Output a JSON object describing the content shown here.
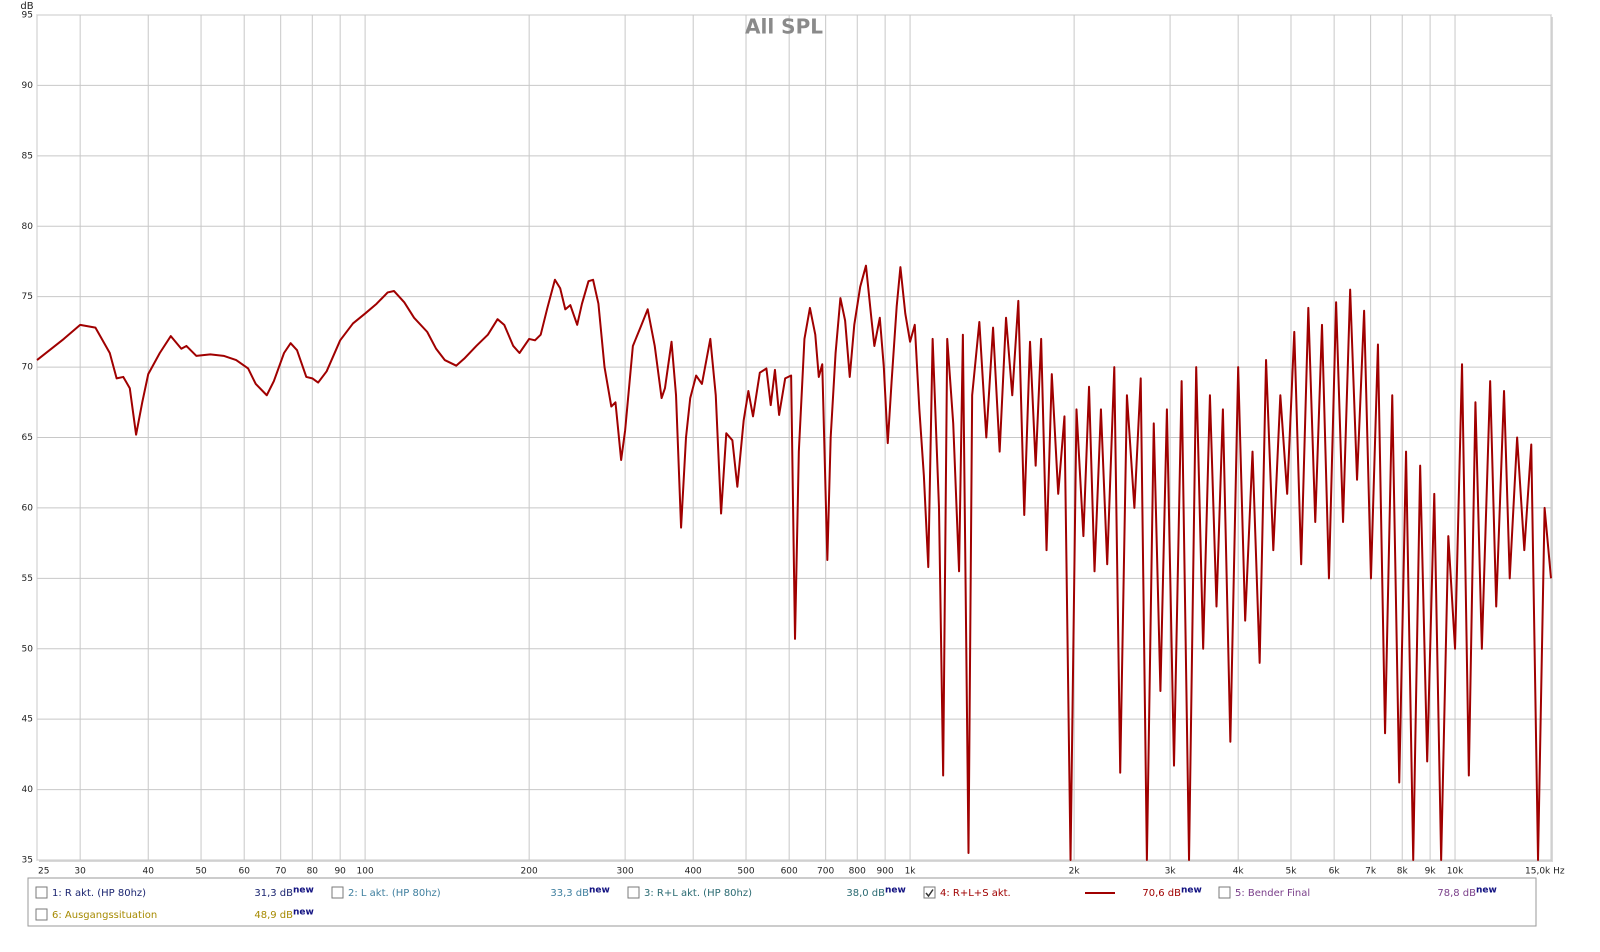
{
  "chart_data": {
    "type": "line",
    "title": "All SPL",
    "y_label": "dB",
    "xscale": "log",
    "grid": true,
    "xlim": [
      25,
      15000
    ],
    "ylim": [
      35,
      95
    ],
    "yticks": [
      35,
      40,
      45,
      50,
      55,
      60,
      65,
      70,
      75,
      80,
      85,
      90,
      95
    ],
    "xticks": [
      25,
      30,
      40,
      50,
      60,
      70,
      80,
      90,
      100,
      200,
      300,
      400,
      500,
      600,
      700,
      800,
      900,
      {
        "value": 1000,
        "label": "1k"
      },
      {
        "value": 2000,
        "label": "2k"
      },
      {
        "value": 3000,
        "label": "3k"
      },
      {
        "value": 4000,
        "label": "4k"
      },
      {
        "value": 5000,
        "label": "5k"
      },
      {
        "value": 6000,
        "label": "6k"
      },
      {
        "value": 7000,
        "label": "7k"
      },
      {
        "value": 8000,
        "label": "8k"
      },
      {
        "value": 9000,
        "label": "9k"
      },
      {
        "value": 10000,
        "label": "10k"
      },
      {
        "value": 15000,
        "label": "15,0k Hz"
      }
    ],
    "x": [
      25,
      28,
      30,
      32,
      34,
      35,
      36,
      37,
      38,
      39,
      40,
      42,
      44,
      46,
      47,
      49,
      52,
      55,
      58,
      61,
      63,
      66,
      68,
      71,
      73,
      75,
      78,
      80,
      82,
      85,
      90,
      95,
      100,
      105,
      110,
      113,
      118,
      123,
      130,
      135,
      140,
      147,
      152,
      160,
      168,
      175,
      180,
      187,
      192,
      200,
      205,
      210,
      216,
      223,
      228,
      233,
      238,
      245,
      250,
      257,
      262,
      268,
      275,
      283,
      288,
      295,
      300,
      310,
      320,
      330,
      340,
      350,
      355,
      365,
      372,
      380,
      388,
      395,
      405,
      415,
      430,
      440,
      450,
      460,
      472,
      482,
      495,
      505,
      515,
      530,
      545,
      555,
      565,
      575,
      590,
      605,
      615,
      625,
      640,
      655,
      670,
      680,
      690,
      705,
      715,
      730,
      745,
      760,
      775,
      790,
      810,
      830,
      850,
      860,
      880,
      895,
      910,
      925,
      945,
      960,
      980,
      1000,
      1020,
      1040,
      1060,
      1080,
      1100,
      1130,
      1150,
      1170,
      1200,
      1230,
      1250,
      1280,
      1300,
      1340,
      1380,
      1420,
      1460,
      1500,
      1540,
      1580,
      1620,
      1660,
      1700,
      1740,
      1780,
      1820,
      1870,
      1920,
      1970,
      2020,
      2080,
      2130,
      2180,
      2240,
      2300,
      2370,
      2430,
      2500,
      2580,
      2650,
      2720,
      2800,
      2880,
      2960,
      3050,
      3150,
      3250,
      3350,
      3450,
      3550,
      3650,
      3750,
      3870,
      4000,
      4120,
      4250,
      4380,
      4500,
      4640,
      4780,
      4920,
      5070,
      5220,
      5380,
      5540,
      5700,
      5870,
      6050,
      6230,
      6420,
      6610,
      6810,
      7010,
      7220,
      7440,
      7670,
      7900,
      8130,
      8380,
      8630,
      8890,
      9160,
      9430,
      9720,
      10000,
      10300,
      10600,
      10900,
      11200,
      11600,
      11900,
      12300,
      12600,
      13000,
      13400,
      13800,
      14200,
      14600,
      15000
    ],
    "series": [
      {
        "name": "4: R+L+S akt.",
        "color": "#a00000",
        "level": "70,6 dB",
        "tag": "new",
        "checked": true,
        "values": [
          70.5,
          72,
          73,
          72.8,
          71,
          69.2,
          69.3,
          68.5,
          65.2,
          67.5,
          69.5,
          71,
          72.2,
          71.3,
          71.5,
          70.8,
          70.9,
          70.8,
          70.5,
          69.9,
          68.8,
          68,
          69,
          71,
          71.7,
          71.2,
          69.3,
          69.2,
          68.9,
          69.7,
          71.9,
          73.1,
          73.8,
          74.5,
          75.3,
          75.4,
          74.6,
          73.5,
          72.5,
          71.3,
          70.5,
          70.1,
          70.6,
          71.5,
          72.3,
          73.4,
          73,
          71.5,
          71,
          72,
          71.9,
          72.3,
          74.2,
          76.2,
          75.6,
          74.1,
          74.4,
          73,
          74.5,
          76.1,
          76.2,
          74.5,
          70,
          67.2,
          67.5,
          63.4,
          65.5,
          71.5,
          72.8,
          74.1,
          71.5,
          67.8,
          68.5,
          71.8,
          68,
          58.6,
          65,
          67.8,
          69.4,
          68.8,
          72,
          68,
          59.6,
          65.3,
          64.8,
          61.5,
          66.2,
          68.3,
          66.5,
          69.6,
          69.9,
          67.3,
          69.8,
          66.6,
          69.2,
          69.4,
          50.7,
          64,
          72,
          74.2,
          72.3,
          69.3,
          70.2,
          56.3,
          65,
          71,
          74.9,
          73.3,
          69.3,
          73,
          75.7,
          77.2,
          73.3,
          71.5,
          73.5,
          70,
          64.6,
          69,
          74.3,
          77.1,
          73.8,
          71.8,
          73,
          67,
          62.3,
          55.8,
          72,
          60,
          41,
          72,
          66,
          55.5,
          72.3,
          35.5,
          68,
          73.2,
          65,
          72.8,
          64,
          73.5,
          68,
          74.7,
          59.5,
          71.8,
          63,
          72,
          57,
          69.5,
          61,
          66.5,
          35,
          67,
          58,
          68.6,
          55.5,
          67,
          56,
          70,
          41.2,
          68,
          60,
          69.2,
          35,
          66,
          47,
          67,
          41.7,
          69,
          35,
          70,
          50,
          68,
          53,
          67,
          43.4,
          70,
          52,
          64,
          49,
          70.5,
          57,
          68,
          61,
          72.5,
          56,
          74.2,
          59,
          73,
          55,
          74.6,
          59,
          75.5,
          62,
          74,
          55,
          71.6,
          44,
          68,
          40.5,
          64,
          35,
          63,
          42,
          61,
          35,
          58,
          50,
          70.2,
          41,
          67.5,
          50,
          69,
          53,
          68.3,
          55,
          65,
          57,
          64.5,
          35,
          60,
          55
        ]
      }
    ],
    "hidden_series": [
      {
        "name": "1: R akt. (HP 80hz)",
        "color": "#1a2470",
        "level": "31,3 dB",
        "tag": "new",
        "checked": false
      },
      {
        "name": "2: L akt. (HP 80hz)",
        "color": "#3f7f9f",
        "level": "33,3 dB",
        "tag": "new",
        "checked": false
      },
      {
        "name": "3: R+L akt. (HP 80hz)",
        "color": "#2a6a72",
        "level": "38,0 dB",
        "tag": "new",
        "checked": false
      },
      {
        "name": "5: Bender Final",
        "color": "#7a3f8a",
        "level": "78,8 dB",
        "tag": "new",
        "checked": false
      },
      {
        "name": "6: Ausgangssituation",
        "color": "#a68a00",
        "level": "48,9 dB",
        "tag": "new",
        "checked": false
      }
    ]
  }
}
